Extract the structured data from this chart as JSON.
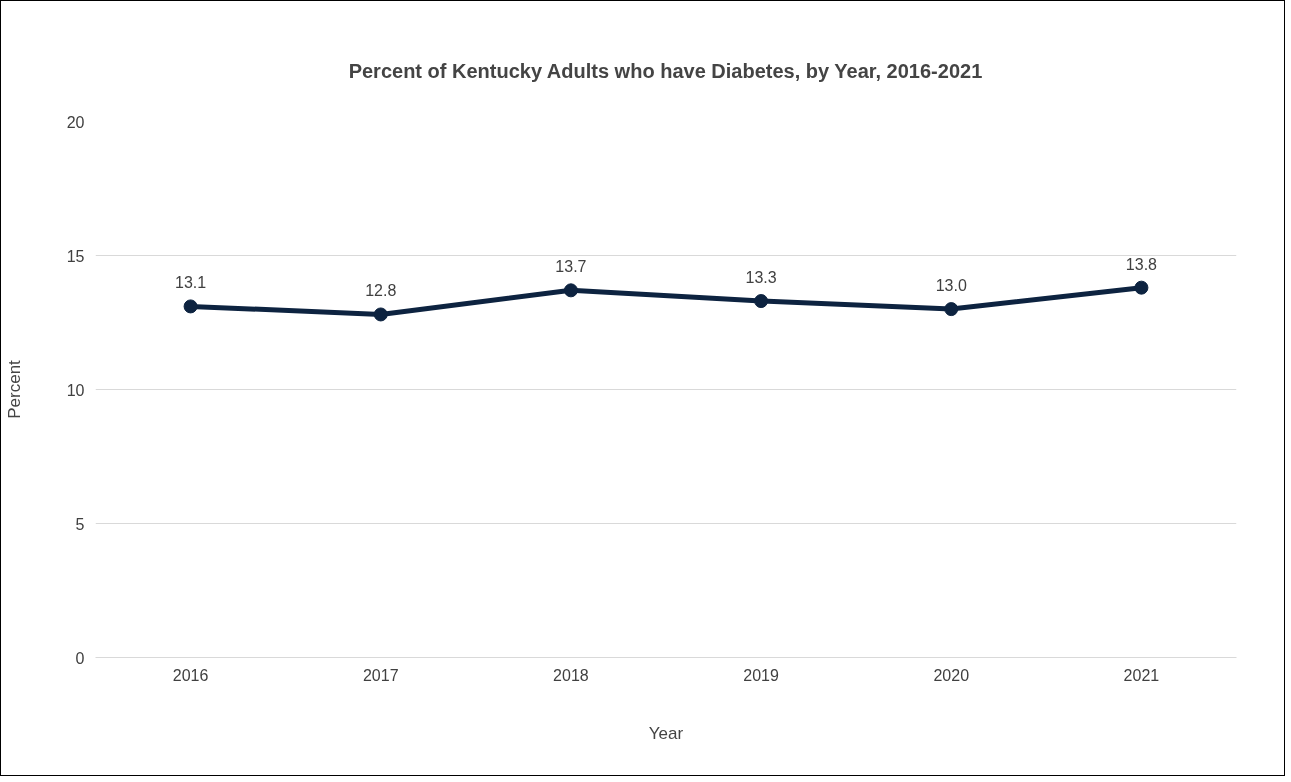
{
  "chart_data": {
    "type": "line",
    "title": "Percent of Kentucky Adults who have Diabetes, by Year, 2016-2021",
    "xlabel": "Year",
    "ylabel": "Percent",
    "categories": [
      "2016",
      "2017",
      "2018",
      "2019",
      "2020",
      "2021"
    ],
    "series": [
      {
        "color": "#0d2340",
        "values": [
          13.1,
          12.8,
          13.7,
          13.3,
          13.0,
          13.8
        ]
      }
    ],
    "ylim": [
      0,
      20
    ],
    "yticks": [
      0,
      5,
      10,
      15,
      20
    ],
    "value_labels": [
      "13.1",
      "12.8",
      "13.7",
      "13.3",
      "13.0",
      "13.8"
    ],
    "grid": "y",
    "marker": "circle",
    "line_style": "solid"
  }
}
